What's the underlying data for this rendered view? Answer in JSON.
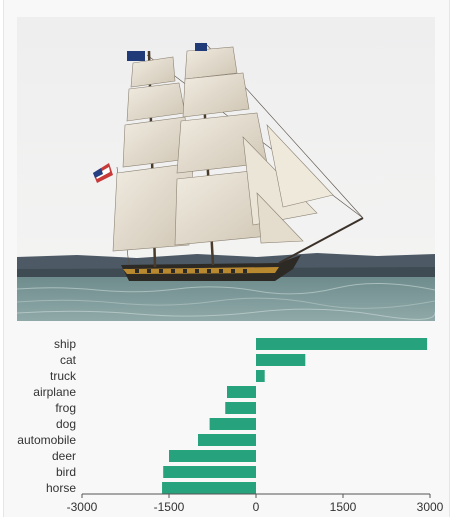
{
  "image": {
    "subject": "tall ship"
  },
  "colors": {
    "bar": "#26a37c",
    "axis": "#555555",
    "background": "#f8f8f8"
  },
  "chart_data": {
    "type": "bar",
    "orientation": "horizontal",
    "categories": [
      "ship",
      "cat",
      "truck",
      "airplane",
      "frog",
      "dog",
      "automobile",
      "deer",
      "bird",
      "horse"
    ],
    "values": [
      2950,
      850,
      150,
      -500,
      -530,
      -800,
      -1000,
      -1500,
      -1600,
      -1620
    ],
    "xlim": [
      -3000,
      3000
    ],
    "xticks": [
      -3000,
      -1500,
      0,
      1500,
      3000
    ],
    "xtick_labels": [
      "-3000",
      "-1500",
      "0",
      "1500",
      "3000"
    ],
    "title": "",
    "xlabel": "",
    "ylabel": "",
    "grid": false
  }
}
